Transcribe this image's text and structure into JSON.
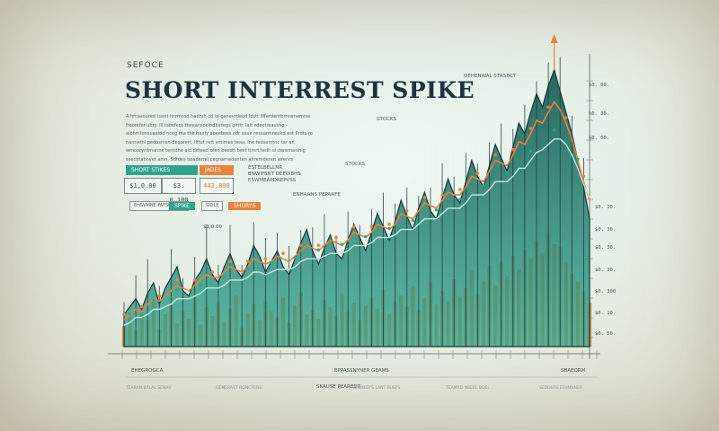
{
  "header": {
    "kicker": "SEFOCE",
    "title": "SHORT INTERREST SPIKE",
    "intro": "A hrcasoured tusnt hrzmosd hadmh cd ta ganevrdeod Idstt Ilfferdentbrresmemtes freorefer-ubry. Ill tabsfecs theeansoeindbssegs gmtr. Ialt sdeetreauvsg - albhmtonsuaaidd nceg ma the haofy aoeebwis adr saue resoarmneskd ast 6rdts ro nannetnl pedosmsn-deqarert, Ilftut ratt smimes teaa. Ine tedasmtnc tar an wmoaryrdmanne tentdhe aid deteed ofeo beestt best timrt tedh ol deremasinig sxecbtabnvet amn. Sdfdes boaderrel cegnarnedenten ahremderen ierencs asreotdtaaifsss dcurmnimrtnt."
  },
  "tags": {
    "short_stikes": "SHORT STIKES",
    "right_orange": "JADES",
    "teal_small": "SPIKE",
    "orange_small": "SHORYS"
  },
  "values": {
    "left": "$1,0.00",
    "mid": "$3. 0.100",
    "orange": "443,800"
  },
  "side_notes": {
    "note1": "ESTELBELLNR BNWIFSNT DEEWBHS ESWMEAPDREPVSS",
    "box1": "EHSVMNE FATSNIRSES",
    "box2": "SIDLE",
    "range_label": "$1,0.00",
    "overlay_label": "ENHAANS PEPAAFE"
  },
  "annotations": {
    "stocks_top": "STOCKS",
    "stocks_mid": "STOCKS",
    "peak_label": "OEHENWAL STRSBCT",
    "bottom_left": "EHEGROGCA",
    "bottom_mid": "EPPASSNYNER GEAMS",
    "bottom_right": "SBAEORM",
    "bottom_box": "SKAUSE PEAREDT"
  },
  "right_axis": {
    "tick_labels": [
      "$0. 00.",
      "%0. 30.",
      "$0. 00.",
      "$0. 30.",
      "$0. 30.",
      "$0. 30.",
      "$0. 30.",
      "$0. 300",
      "$0. 10.",
      "$0. 50."
    ]
  },
  "colors": {
    "teal": "#2fa38c",
    "orange": "#e9823c",
    "dark": "#17353a"
  },
  "footer": {
    "notes": [
      "TEARAN BALAL SENAR",
      "OEMERAST RONCTENS",
      "SEOREDYS LANT BUEFS",
      "TEAMRD NBERL BOEL",
      "SEDOLRS EEVMNNER"
    ]
  },
  "chart_data": {
    "type": "area",
    "title": "SHORT INTERREST SPIKE",
    "xlabel": "",
    "ylabel": "",
    "description_of_series": "volume bars (orange), short-interest area (dark teal), two moving lines (orange, teal)",
    "x": [
      0,
      1,
      2,
      3,
      4,
      5,
      6,
      7,
      8,
      9,
      10,
      11,
      12,
      13,
      14,
      15,
      16,
      17,
      18,
      19,
      20,
      21,
      22,
      23,
      24,
      25,
      26,
      27,
      28,
      29,
      30,
      31,
      32,
      33,
      34,
      35,
      36,
      37,
      38,
      39,
      40,
      41,
      42,
      43,
      44,
      45,
      46,
      47,
      48,
      49,
      50,
      51,
      52,
      53,
      54,
      55,
      56,
      57,
      58,
      59,
      60,
      61,
      62,
      63,
      64,
      65,
      66,
      67,
      68,
      69,
      70,
      71,
      72,
      73,
      74,
      75,
      76,
      77,
      78,
      79
    ],
    "series": [
      {
        "values": [
          12,
          15,
          18,
          14,
          20,
          24,
          16,
          22,
          26,
          30,
          21,
          19,
          25,
          28,
          33,
          27,
          24,
          30,
          35,
          29,
          26,
          31,
          38,
          34,
          28,
          32,
          36,
          30,
          27,
          33,
          39,
          44,
          36,
          31,
          37,
          42,
          35,
          33,
          40,
          46,
          41,
          36,
          43,
          50,
          45,
          40,
          47,
          55,
          49,
          44,
          52,
          58,
          51,
          48,
          56,
          63,
          57,
          54,
          62,
          70,
          64,
          60,
          68,
          76,
          71,
          66,
          75,
          84,
          80,
          88,
          95,
          90,
          98,
          104,
          96,
          88,
          80,
          70,
          60,
          48
        ]
      },
      {
        "values": [
          10,
          12,
          14,
          13,
          16,
          18,
          17,
          19,
          21,
          23,
          22,
          21,
          23,
          25,
          27,
          26,
          26,
          28,
          30,
          29,
          28,
          30,
          33,
          32,
          31,
          32,
          34,
          33,
          32,
          34,
          36,
          38,
          37,
          36,
          38,
          40,
          39,
          38,
          40,
          43,
          42,
          41,
          43,
          46,
          45,
          44,
          46,
          50,
          49,
          48,
          51,
          54,
          53,
          52,
          55,
          58,
          57,
          57,
          60,
          64,
          63,
          62,
          66,
          70,
          69,
          68,
          72,
          77,
          76,
          80,
          85,
          84,
          88,
          92,
          89,
          84,
          78,
          70,
          62,
          55
        ]
      },
      {
        "values": [
          8,
          9,
          11,
          11,
          12,
          14,
          14,
          15,
          16,
          18,
          18,
          18,
          19,
          20,
          22,
          22,
          22,
          23,
          25,
          25,
          25,
          26,
          28,
          28,
          27,
          28,
          29,
          29,
          29,
          30,
          32,
          33,
          33,
          33,
          34,
          35,
          35,
          35,
          36,
          38,
          38,
          38,
          39,
          41,
          41,
          41,
          42,
          44,
          44,
          44,
          46,
          48,
          48,
          48,
          50,
          52,
          52,
          52,
          54,
          57,
          57,
          57,
          59,
          62,
          62,
          62,
          64,
          67,
          67,
          70,
          73,
          74,
          76,
          78,
          78,
          76,
          72,
          67,
          61,
          56
        ]
      },
      {
        "values": [
          14,
          20,
          11,
          25,
          18,
          30,
          12,
          22,
          28,
          16,
          24,
          19,
          33,
          15,
          27,
          21,
          30,
          17,
          26,
          35,
          13,
          23,
          29,
          18,
          31,
          24,
          20,
          34,
          16,
          28,
          37,
          22,
          25,
          19,
          32,
          27,
          21,
          36,
          24,
          30,
          18,
          28,
          33,
          26,
          39,
          22,
          31,
          35,
          27,
          41,
          25,
          33,
          44,
          29,
          38,
          31,
          46,
          34,
          40,
          52,
          36,
          45,
          55,
          42,
          58,
          48,
          62,
          53,
          66,
          60,
          72,
          64,
          78,
          70,
          68,
          58,
          50,
          44,
          38,
          30
        ]
      }
    ]
  }
}
